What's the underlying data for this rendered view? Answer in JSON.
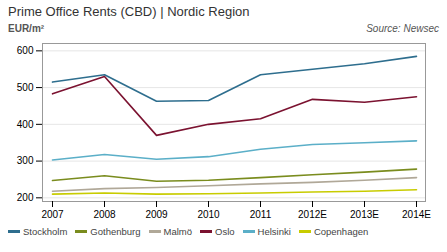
{
  "chart_data": {
    "type": "line",
    "title": "Prime Office Rents (CBD)  |  Nordic Region",
    "ylabel": "EUR/m²",
    "annotations": [
      "Source: Newsec"
    ],
    "categories": [
      "2007",
      "2008",
      "2009",
      "2010",
      "2011",
      "2012E",
      "2013E",
      "2014E"
    ],
    "series": [
      {
        "name": "Stockholm",
        "color": "#2e6e8e",
        "values": [
          515,
          535,
          463,
          465,
          535,
          550,
          565,
          585
        ]
      },
      {
        "name": "Gothenburg",
        "color": "#7a8c1e",
        "values": [
          247,
          260,
          245,
          248,
          255,
          263,
          270,
          278
        ]
      },
      {
        "name": "Malmö",
        "color": "#b0a898",
        "values": [
          218,
          225,
          228,
          233,
          238,
          242,
          248,
          255
        ]
      },
      {
        "name": "Oslo",
        "color": "#7b1230",
        "values": [
          483,
          530,
          370,
          400,
          415,
          468,
          460,
          475
        ]
      },
      {
        "name": "Helsinki",
        "color": "#5bafc8",
        "values": [
          303,
          318,
          305,
          312,
          332,
          345,
          350,
          355
        ]
      },
      {
        "name": "Copenhagen",
        "color": "#c8cc00",
        "values": [
          210,
          213,
          210,
          211,
          213,
          216,
          218,
          222
        ]
      }
    ],
    "ylim": [
      190,
      620
    ],
    "yticks": [
      200,
      300,
      400,
      500,
      600
    ],
    "grid": true,
    "legend": "bottom"
  }
}
